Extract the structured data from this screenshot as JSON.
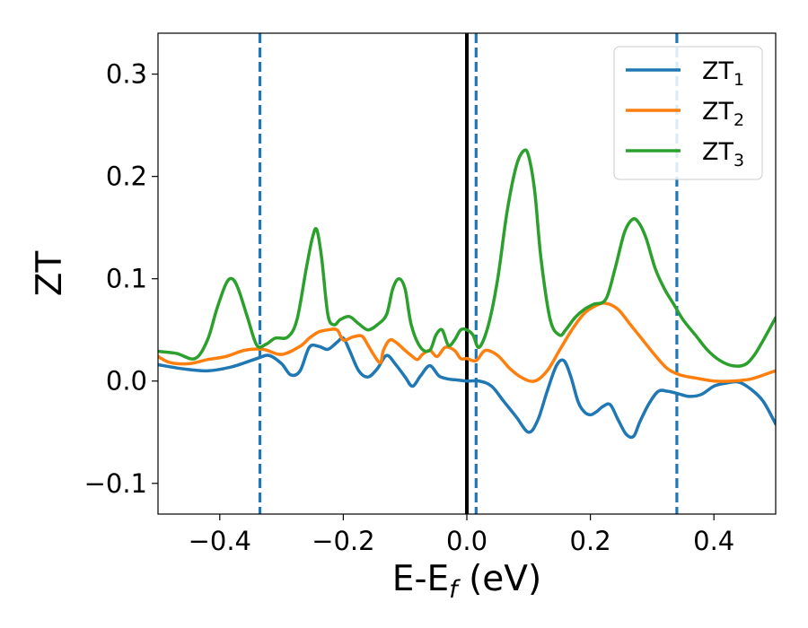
{
  "chart_data": {
    "type": "line",
    "xlabel": "E-E",
    "xlabel_sub": "f",
    "xlabel_unit": " (eV)",
    "ylabel": "ZT",
    "xlim": [
      -0.5,
      0.5
    ],
    "ylim": [
      -0.13,
      0.34
    ],
    "xticks": [
      -0.4,
      -0.2,
      0.0,
      0.2,
      0.4
    ],
    "xtick_labels": [
      "−0.4",
      "−0.2",
      "0.0",
      "0.2",
      "0.4"
    ],
    "yticks": [
      -0.1,
      0.0,
      0.1,
      0.2,
      0.3
    ],
    "ytick_labels": [
      "−0.1",
      "0.0",
      "0.1",
      "0.2",
      "0.3"
    ],
    "grid": false,
    "legend_position": "top-right",
    "vlines": [
      {
        "x": -0.335,
        "style": "dashed",
        "color": "#1f77b4"
      },
      {
        "x": 0.015,
        "style": "dashed",
        "color": "#1f77b4"
      },
      {
        "x": 0.34,
        "style": "dashed",
        "color": "#1f77b4"
      },
      {
        "x": 0.0,
        "style": "solid",
        "color": "#000000"
      }
    ],
    "series": [
      {
        "name": "ZT",
        "sub": "1",
        "color": "#1f77b4",
        "x": [
          -0.5,
          -0.46,
          -0.42,
          -0.38,
          -0.34,
          -0.32,
          -0.3,
          -0.285,
          -0.27,
          -0.255,
          -0.24,
          -0.225,
          -0.21,
          -0.2,
          -0.19,
          -0.175,
          -0.16,
          -0.145,
          -0.13,
          -0.115,
          -0.1,
          -0.088,
          -0.075,
          -0.06,
          -0.045,
          -0.03,
          -0.015,
          0.0,
          0.02,
          0.04,
          0.06,
          0.08,
          0.1,
          0.115,
          0.13,
          0.145,
          0.157,
          0.168,
          0.18,
          0.19,
          0.2,
          0.21,
          0.22,
          0.232,
          0.245,
          0.258,
          0.27,
          0.28,
          0.295,
          0.31,
          0.325,
          0.34,
          0.36,
          0.38,
          0.4,
          0.42,
          0.44,
          0.46,
          0.48,
          0.5
        ],
        "y": [
          0.016,
          0.012,
          0.01,
          0.014,
          0.022,
          0.025,
          0.017,
          0.006,
          0.01,
          0.033,
          0.034,
          0.031,
          0.038,
          0.042,
          0.03,
          0.01,
          0.004,
          0.012,
          0.025,
          0.016,
          0.004,
          -0.005,
          0.005,
          0.015,
          0.005,
          0.002,
          0.001,
          0.0,
          0.0,
          -0.005,
          -0.02,
          -0.035,
          -0.05,
          -0.038,
          -0.01,
          0.015,
          0.02,
          0.005,
          -0.02,
          -0.03,
          -0.033,
          -0.03,
          -0.025,
          -0.023,
          -0.038,
          -0.052,
          -0.054,
          -0.04,
          -0.022,
          -0.01,
          -0.01,
          -0.012,
          -0.015,
          -0.013,
          -0.005,
          -0.002,
          -0.001,
          -0.008,
          -0.02,
          -0.042
        ]
      },
      {
        "name": "ZT",
        "sub": "2",
        "color": "#ff7f0e",
        "x": [
          -0.5,
          -0.48,
          -0.45,
          -0.42,
          -0.39,
          -0.36,
          -0.33,
          -0.3,
          -0.27,
          -0.255,
          -0.24,
          -0.225,
          -0.21,
          -0.2,
          -0.185,
          -0.17,
          -0.16,
          -0.15,
          -0.14,
          -0.135,
          -0.125,
          -0.115,
          -0.1,
          -0.09,
          -0.08,
          -0.072,
          -0.06,
          -0.048,
          -0.035,
          -0.02,
          -0.01,
          0.0,
          0.015,
          0.03,
          0.05,
          0.07,
          0.09,
          0.11,
          0.13,
          0.15,
          0.17,
          0.19,
          0.21,
          0.225,
          0.245,
          0.265,
          0.285,
          0.305,
          0.325,
          0.345,
          0.37,
          0.4,
          0.43,
          0.46,
          0.49,
          0.5
        ],
        "y": [
          0.024,
          0.018,
          0.017,
          0.021,
          0.024,
          0.03,
          0.031,
          0.026,
          0.034,
          0.042,
          0.048,
          0.05,
          0.05,
          0.04,
          0.043,
          0.044,
          0.035,
          0.025,
          0.018,
          0.03,
          0.04,
          0.038,
          0.03,
          0.025,
          0.021,
          0.026,
          0.03,
          0.024,
          0.033,
          0.03,
          0.022,
          0.022,
          0.02,
          0.03,
          0.025,
          0.012,
          0.003,
          0.0,
          0.01,
          0.03,
          0.05,
          0.066,
          0.074,
          0.076,
          0.07,
          0.055,
          0.04,
          0.025,
          0.012,
          0.006,
          0.003,
          0.0,
          0.0,
          0.002,
          0.008,
          0.01
        ]
      },
      {
        "name": "ZT",
        "sub": "3",
        "color": "#2ca02c",
        "x": [
          -0.5,
          -0.47,
          -0.44,
          -0.42,
          -0.405,
          -0.39,
          -0.38,
          -0.37,
          -0.355,
          -0.34,
          -0.325,
          -0.31,
          -0.29,
          -0.275,
          -0.26,
          -0.25,
          -0.243,
          -0.235,
          -0.225,
          -0.215,
          -0.205,
          -0.19,
          -0.175,
          -0.16,
          -0.145,
          -0.13,
          -0.12,
          -0.11,
          -0.1,
          -0.09,
          -0.075,
          -0.06,
          -0.05,
          -0.04,
          -0.03,
          -0.02,
          -0.01,
          0.0,
          0.01,
          0.02,
          0.035,
          0.05,
          0.065,
          0.08,
          0.092,
          0.1,
          0.11,
          0.12,
          0.135,
          0.15,
          0.16,
          0.175,
          0.19,
          0.205,
          0.225,
          0.24,
          0.255,
          0.268,
          0.278,
          0.29,
          0.305,
          0.32,
          0.335,
          0.35,
          0.37,
          0.39,
          0.41,
          0.43,
          0.45,
          0.465,
          0.48,
          0.5
        ],
        "y": [
          0.029,
          0.027,
          0.022,
          0.04,
          0.07,
          0.095,
          0.1,
          0.09,
          0.062,
          0.035,
          0.036,
          0.042,
          0.043,
          0.06,
          0.11,
          0.14,
          0.148,
          0.12,
          0.065,
          0.055,
          0.06,
          0.063,
          0.056,
          0.05,
          0.055,
          0.065,
          0.09,
          0.1,
          0.09,
          0.055,
          0.033,
          0.03,
          0.045,
          0.05,
          0.035,
          0.04,
          0.05,
          0.05,
          0.045,
          0.033,
          0.055,
          0.1,
          0.165,
          0.21,
          0.225,
          0.22,
          0.185,
          0.12,
          0.06,
          0.045,
          0.05,
          0.062,
          0.07,
          0.075,
          0.08,
          0.11,
          0.145,
          0.158,
          0.155,
          0.14,
          0.11,
          0.09,
          0.075,
          0.06,
          0.045,
          0.03,
          0.02,
          0.015,
          0.016,
          0.025,
          0.04,
          0.062
        ]
      }
    ]
  }
}
